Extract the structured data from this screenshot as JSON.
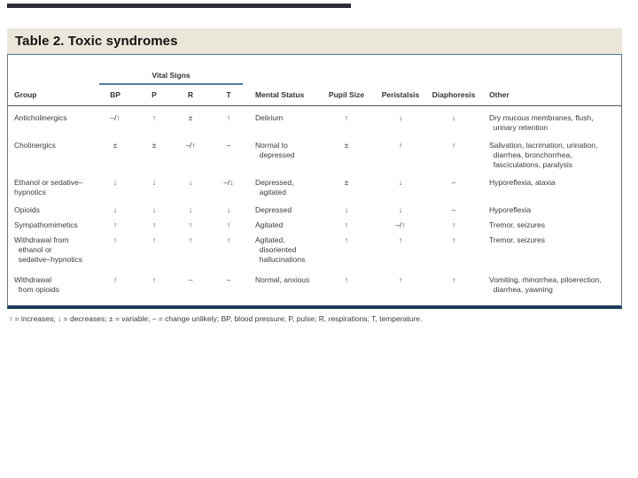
{
  "slide": {
    "title": "Table 2. Toxic syndromes",
    "footnote": "↑ = increases; ↓ = decreases; ± = variable; – = change unlikely; BP, blood pressure; P, pulse; R, respirations; T, temperature."
  },
  "colors": {
    "title_band_bg": "#eae7da",
    "table_border": "#4d7e9e",
    "table_bottom_border": "#1c3a58",
    "top_accent_bar": "#2a2d38"
  },
  "table": {
    "spanner_label": "Vital Signs",
    "headers": [
      "Group",
      "BP",
      "P",
      "R",
      "T",
      "Mental Status",
      "Pupil Size",
      "Peristalsis",
      "Diaphoresis",
      "Other"
    ],
    "rows": [
      {
        "group": "Anticholinergics",
        "bp": "–/↑",
        "p": "↑",
        "r": "±",
        "t": "↑",
        "mental": "Delirium",
        "pupil": "↑",
        "peristalsis": "↓",
        "diaphoresis": "↓",
        "other": "Dry mucous membranes, flush,\n  urinary retention"
      },
      {
        "group": "Cholinergics",
        "bp": "±",
        "p": "±",
        "r": "–/↑",
        "t": "–",
        "mental": "Normal to\n  depressed",
        "pupil": "±",
        "peristalsis": "↑",
        "diaphoresis": "↑",
        "other": "Salivation, lacrimation, urination,\n  diarrhea, bronchorrhea,\n  fasciculations, paralysis"
      },
      {
        "group": "Ethanol or sedative–\nhypnotics",
        "bp": "↓",
        "p": "↓",
        "r": "↓",
        "t": "–/↓",
        "mental": "Depressed,\n  agitated",
        "pupil": "±",
        "peristalsis": "↓",
        "diaphoresis": "–",
        "other": "Hyporeflexia, ataxia"
      },
      {
        "group": "Opioids",
        "bp": "↓",
        "p": "↓",
        "r": "↓",
        "t": "↓",
        "mental": "Depressed",
        "pupil": "↓",
        "peristalsis": "↓",
        "diaphoresis": "–",
        "other": "Hyporeflexia"
      },
      {
        "group": "Sympathomimetics",
        "bp": "↑",
        "p": "↑",
        "r": "↑",
        "t": "↑",
        "mental": "Agitated",
        "pupil": "↑",
        "peristalsis": "–/↑",
        "diaphoresis": "↑",
        "other": "Tremor, seizures"
      },
      {
        "group": "Withdrawal from\n  ethanol or\n  sedative–hypnotics",
        "bp": "↑",
        "p": "↑",
        "r": "↑",
        "t": "↑",
        "mental": "Agitated,\n  disoriented\n  hallucinations",
        "pupil": "↑",
        "peristalsis": "↑",
        "diaphoresis": "↑",
        "other": "Tremor, seizures"
      },
      {
        "group": "Withdrawal\n  from opioids",
        "bp": "↑",
        "p": "↑",
        "r": "–",
        "t": "–",
        "mental": "Normal, anxious",
        "pupil": "↑",
        "peristalsis": "↑",
        "diaphoresis": "↑",
        "other": "Vomiting, rhinorrhea, piloerection,\n  diarrhea, yawning"
      }
    ]
  }
}
